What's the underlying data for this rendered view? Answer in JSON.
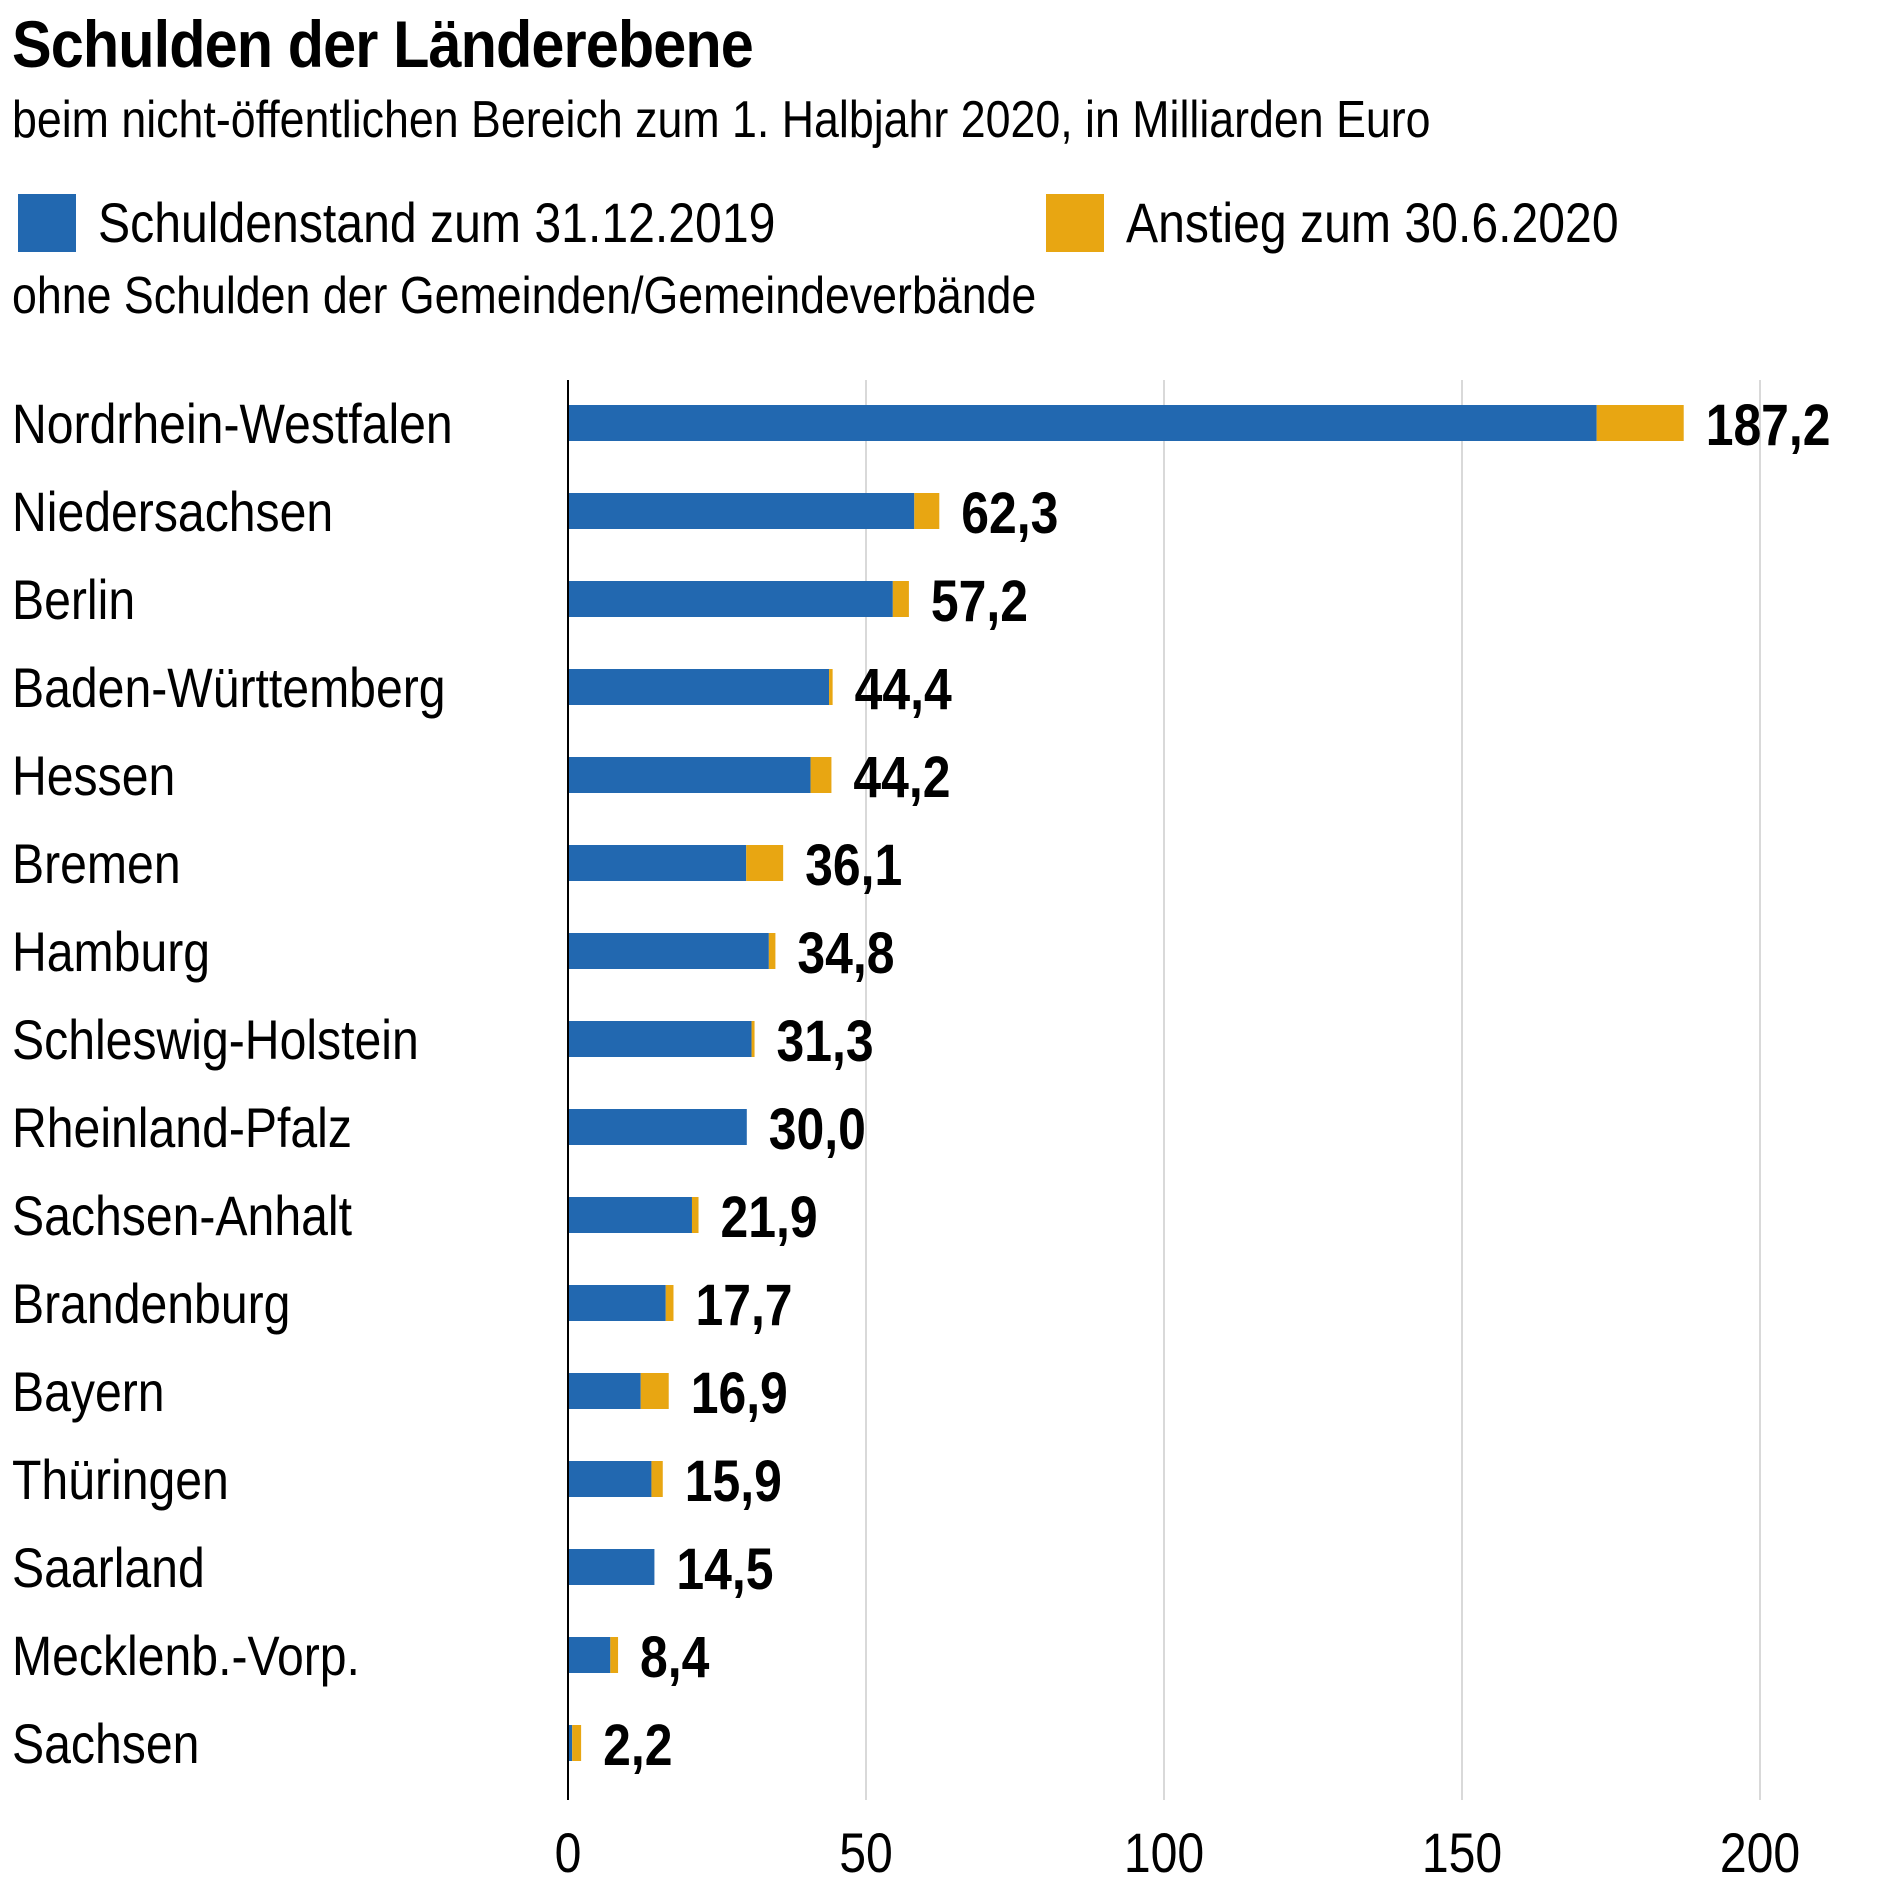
{
  "header": {
    "title": "Schulden der Länderebene",
    "subtitle": "beim nicht-öffentlichen Bereich zum 1. Halbjahr 2020, in Milliarden Euro",
    "note": "ohne Schulden der Gemeinden/Gemeindeverbände"
  },
  "legend": {
    "items": [
      {
        "label": "Schuldenstand zum 31.12.2019",
        "color": "#2268b0"
      },
      {
        "label": "Anstieg zum 30.6.2020",
        "color": "#e8a612"
      }
    ]
  },
  "chart_data": {
    "type": "bar",
    "orientation": "horizontal",
    "stacked": true,
    "title": "Schulden der Länderebene",
    "subtitle": "beim nicht-öffentlichen Bereich zum 1. Halbjahr 2020, in Milliarden Euro",
    "xlabel": "",
    "ylabel": "",
    "xlim": [
      0,
      200
    ],
    "xticks": [
      0,
      50,
      100,
      150,
      200
    ],
    "grid": true,
    "legend_position": "top",
    "categories": [
      "Nordrhein-Westfalen",
      "Niedersachsen",
      "Berlin",
      "Baden-Württemberg",
      "Hessen",
      "Bremen",
      "Hamburg",
      "Schleswig-Holstein",
      "Rheinland-Pfalz",
      "Sachsen-Anhalt",
      "Brandenburg",
      "Bayern",
      "Thüringen",
      "Saarland",
      "Mecklenb.-Vorp.",
      "Sachsen"
    ],
    "series": [
      {
        "name": "Schuldenstand zum 31.12.2019",
        "color": "#2268b0",
        "values": [
          172.6,
          58.1,
          54.5,
          43.8,
          40.7,
          29.9,
          33.7,
          30.8,
          30.0,
          20.8,
          16.4,
          12.2,
          14.0,
          14.5,
          7.1,
          0.7
        ]
      },
      {
        "name": "Anstieg zum 30.6.2020",
        "color": "#e8a612",
        "values": [
          14.6,
          4.2,
          2.7,
          0.6,
          3.5,
          6.2,
          1.1,
          0.5,
          0.0,
          1.1,
          1.3,
          4.7,
          1.9,
          0.0,
          1.3,
          1.5
        ]
      }
    ],
    "totals": [
      187.2,
      62.3,
      57.2,
      44.4,
      44.2,
      36.1,
      34.8,
      31.3,
      30.0,
      21.9,
      17.7,
      16.9,
      15.9,
      14.5,
      8.4,
      2.2
    ],
    "total_labels": [
      "187,2",
      "62,3",
      "57,2",
      "44,4",
      "44,2",
      "36,1",
      "34,8",
      "31,3",
      "30,0",
      "21,9",
      "17,7",
      "16,9",
      "15,9",
      "14,5",
      "8,4",
      "2,2"
    ]
  }
}
